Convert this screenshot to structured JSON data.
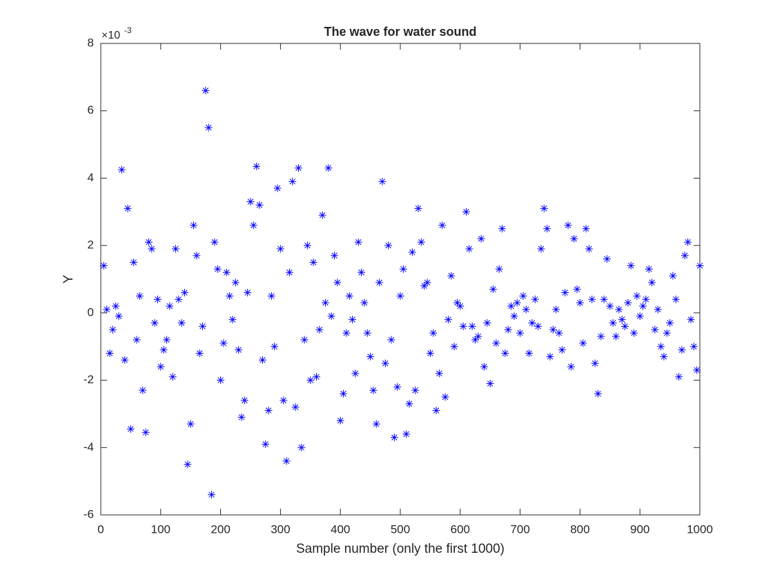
{
  "chart_data": {
    "type": "scatter",
    "title": "The wave for water sound",
    "x_label": "Sample number (only the first 1000)",
    "y_label": "Y",
    "y_multiplier": {
      "base": "×10",
      "exponent": "-3"
    },
    "marker": "asterisk",
    "color": "#0000ff",
    "grid": false,
    "xlim": [
      0,
      1000
    ],
    "xticks": [
      0,
      100,
      200,
      300,
      400,
      500,
      600,
      700,
      800,
      900,
      1000
    ],
    "ylim": [
      -6,
      8
    ],
    "yticks": [
      -6,
      -4,
      -2,
      0,
      2,
      4,
      6,
      8
    ],
    "x": [
      5,
      10,
      15,
      20,
      25,
      30,
      35,
      40,
      45,
      50,
      55,
      60,
      65,
      70,
      75,
      80,
      85,
      90,
      95,
      100,
      105,
      110,
      115,
      120,
      125,
      130,
      135,
      140,
      145,
      150,
      155,
      160,
      165,
      170,
      175,
      180,
      185,
      190,
      195,
      200,
      205,
      210,
      215,
      220,
      225,
      230,
      235,
      240,
      245,
      250,
      255,
      260,
      265,
      270,
      275,
      280,
      285,
      290,
      295,
      300,
      305,
      310,
      315,
      320,
      325,
      330,
      335,
      340,
      345,
      350,
      355,
      360,
      365,
      370,
      375,
      380,
      385,
      390,
      395,
      400,
      405,
      410,
      415,
      420,
      425,
      430,
      435,
      440,
      445,
      450,
      455,
      460,
      465,
      470,
      475,
      480,
      485,
      490,
      495,
      500,
      505,
      510,
      515,
      520,
      525,
      530,
      535,
      540,
      545,
      550,
      555,
      560,
      565,
      570,
      575,
      580,
      585,
      590,
      595,
      600,
      605,
      610,
      615,
      620,
      625,
      630,
      635,
      640,
      645,
      650,
      655,
      660,
      665,
      670,
      675,
      680,
      685,
      690,
      695,
      700,
      705,
      710,
      715,
      720,
      725,
      730,
      735,
      740,
      745,
      750,
      755,
      760,
      765,
      770,
      775,
      780,
      785,
      790,
      795,
      800,
      805,
      810,
      815,
      820,
      825,
      830,
      835,
      840,
      845,
      850,
      855,
      860,
      865,
      870,
      875,
      880,
      885,
      890,
      895,
      900,
      905,
      910,
      915,
      920,
      925,
      930,
      935,
      940,
      945,
      950,
      955,
      960,
      965,
      970,
      975,
      980,
      985,
      990,
      995,
      1000
    ],
    "values": [
      1.4,
      0.1,
      -1.2,
      -0.5,
      0.2,
      -0.1,
      4.25,
      -1.4,
      3.1,
      -3.45,
      1.5,
      -0.8,
      0.5,
      -2.3,
      -3.55,
      2.1,
      1.9,
      -0.3,
      0.4,
      -1.6,
      -1.1,
      -0.8,
      0.2,
      -1.9,
      1.9,
      0.4,
      -0.3,
      0.6,
      -4.5,
      -3.3,
      2.6,
      1.7,
      -1.2,
      -0.4,
      6.6,
      5.5,
      -5.4,
      2.1,
      1.3,
      -2.0,
      -0.9,
      1.2,
      0.5,
      -0.2,
      0.9,
      -1.1,
      -3.1,
      -2.6,
      0.6,
      3.3,
      2.6,
      4.35,
      3.2,
      -1.4,
      -3.9,
      -2.9,
      0.5,
      -1.0,
      3.7,
      1.9,
      -2.6,
      -4.4,
      1.2,
      3.9,
      -2.8,
      4.3,
      -4.0,
      -0.8,
      2.0,
      -2.0,
      1.5,
      -1.9,
      -0.5,
      2.9,
      0.3,
      4.3,
      -0.1,
      1.7,
      0.9,
      -3.2,
      -2.4,
      -0.6,
      0.5,
      -0.2,
      -1.8,
      2.1,
      1.2,
      0.3,
      -0.6,
      -1.3,
      -2.3,
      -3.3,
      0.9,
      3.9,
      -1.5,
      2.0,
      -0.8,
      -3.7,
      -2.2,
      0.5,
      1.3,
      -3.6,
      -2.7,
      1.8,
      -2.3,
      3.1,
      2.1,
      0.8,
      0.9,
      -1.2,
      -0.6,
      -2.9,
      -1.8,
      2.6,
      -2.5,
      -0.2,
      1.1,
      -1.0,
      0.3,
      0.2,
      -0.4,
      3.0,
      1.9,
      -0.4,
      -0.8,
      -0.7,
      2.2,
      -1.6,
      -0.3,
      -2.1,
      0.7,
      -0.9,
      1.3,
      2.5,
      -1.2,
      -0.5,
      0.2,
      -0.1,
      0.3,
      -0.6,
      0.5,
      0.1,
      -1.2,
      -0.3,
      0.4,
      -0.4,
      1.9,
      3.1,
      2.5,
      -1.3,
      -0.5,
      0.1,
      -0.6,
      -1.1,
      0.6,
      2.6,
      -1.6,
      2.2,
      0.7,
      0.3,
      -0.9,
      2.5,
      1.9,
      0.4,
      -1.5,
      -2.4,
      -0.7,
      0.4,
      1.6,
      0.2,
      -0.3,
      -0.7,
      0.1,
      -0.2,
      -0.4,
      0.3,
      1.4,
      -0.6,
      0.5,
      -0.1,
      0.2,
      0.4,
      1.3,
      0.9,
      -0.5,
      0.1,
      -1.0,
      -1.3,
      -0.6,
      -0.3,
      1.1,
      0.4,
      -1.9,
      -1.1,
      1.7,
      2.1,
      -0.2,
      -1.0,
      -1.7,
      1.4
    ]
  }
}
